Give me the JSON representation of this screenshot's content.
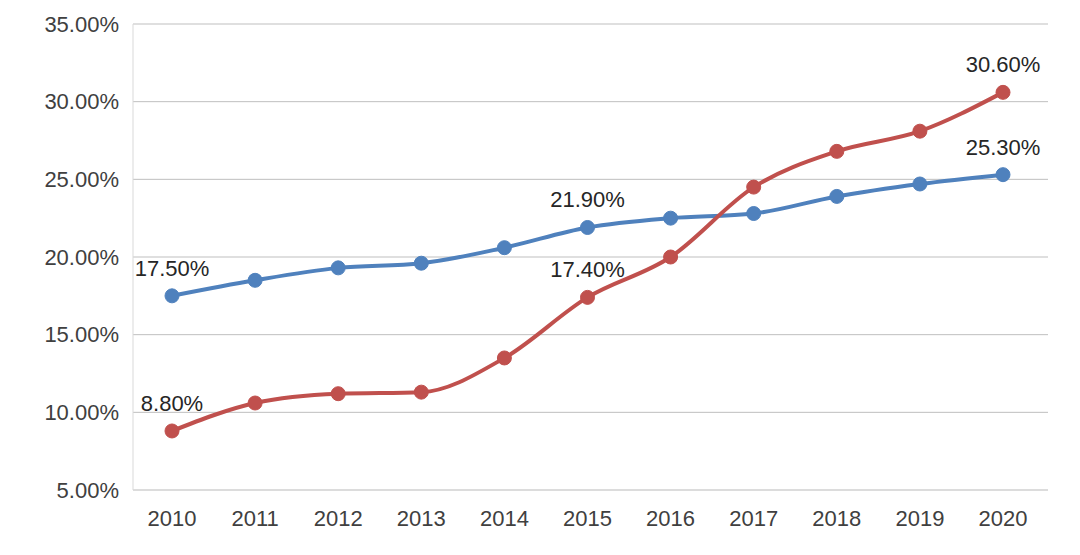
{
  "chart_data": {
    "type": "line",
    "categories": [
      "2010",
      "2011",
      "2012",
      "2013",
      "2014",
      "2015",
      "2016",
      "2017",
      "2018",
      "2019",
      "2020"
    ],
    "series": [
      {
        "color": "#4f81bd",
        "marker": "circle",
        "values": [
          17.5,
          18.5,
          19.3,
          19.6,
          20.6,
          21.9,
          22.5,
          22.8,
          23.9,
          24.7,
          25.3
        ],
        "value_labels": [
          "17.50%",
          null,
          null,
          null,
          null,
          "21.90%",
          null,
          null,
          null,
          null,
          "25.30%"
        ]
      },
      {
        "color": "#c0504d",
        "marker": "circle",
        "values": [
          8.8,
          10.6,
          11.2,
          11.3,
          13.5,
          17.4,
          20.0,
          24.5,
          26.8,
          28.1,
          30.6
        ],
        "value_labels": [
          "8.80%",
          null,
          null,
          null,
          null,
          "17.40%",
          null,
          null,
          null,
          null,
          "30.60%"
        ]
      }
    ],
    "ylim": [
      5,
      35
    ],
    "yticks": [
      {
        "value": 5,
        "label": "5.00%"
      },
      {
        "value": 10,
        "label": "10.00%"
      },
      {
        "value": 15,
        "label": "15.00%"
      },
      {
        "value": 20,
        "label": "20.00%"
      },
      {
        "value": 25,
        "label": "25.00%"
      },
      {
        "value": 30,
        "label": "30.00%"
      },
      {
        "value": 35,
        "label": "35.00%"
      }
    ],
    "grid": true,
    "data_labels": true
  }
}
